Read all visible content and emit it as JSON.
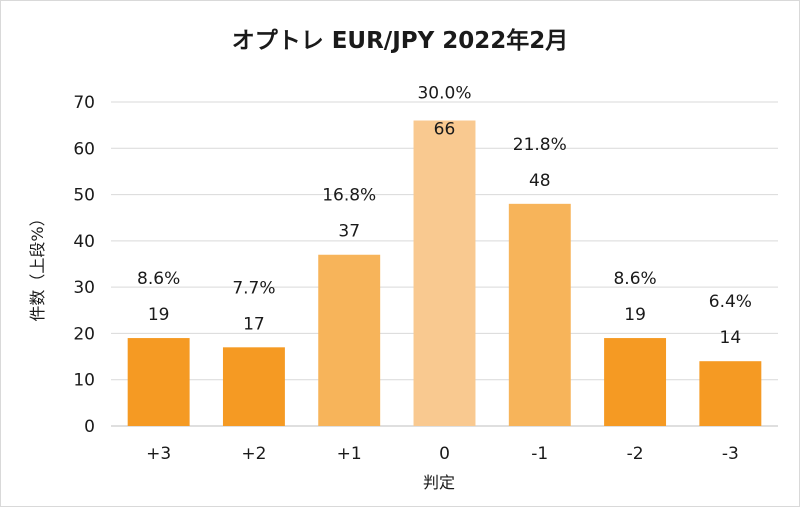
{
  "chart_data": {
    "type": "bar",
    "title": "オプトレ EUR/JPY 2022年2月",
    "xlabel": "判定",
    "ylabel": "件数（上段%）",
    "categories": [
      "+3",
      "+2",
      "+1",
      "0",
      "-1",
      "-2",
      "-3"
    ],
    "values": [
      19,
      17,
      37,
      66,
      48,
      19,
      14
    ],
    "percent_labels": [
      "8.6%",
      "7.7%",
      "16.8%",
      "30.0%",
      "21.8%",
      "8.6%",
      "6.4%"
    ],
    "bar_colors": [
      "#f59a23",
      "#f59a23",
      "#f7b45a",
      "#f9c990",
      "#f7b45a",
      "#f59a23",
      "#f59a23"
    ],
    "ylim": [
      0,
      70
    ],
    "yticks": [
      0,
      10,
      20,
      30,
      40,
      50,
      60,
      70
    ],
    "grid": true,
    "legend": "none"
  }
}
